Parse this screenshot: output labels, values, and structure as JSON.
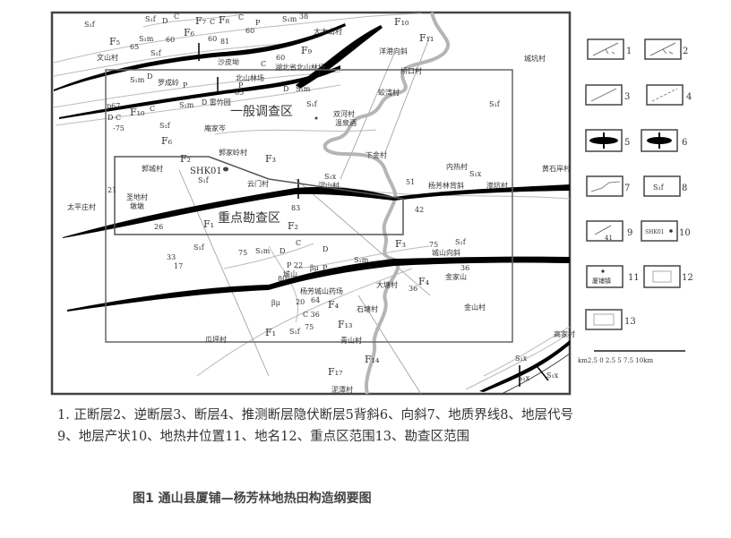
{
  "map": {
    "labels": {
      "s1f_a": "S₁f",
      "s1f_b": "S₁f",
      "d_a": "D",
      "c_a": "C",
      "f7": "F₇",
      "c_b": "C",
      "f8": "F₈",
      "c_c": "C",
      "p_a": "P",
      "n60_a": "60",
      "s1m_a": "S₁m",
      "n38": "38",
      "f5": "F₅",
      "n65_a": "65",
      "s1m_b": "S₁m",
      "n60_b": "60",
      "f6_a": "F₆",
      "n60_c": "60",
      "n81": "81",
      "damushan": "大木山村",
      "f10_a": "F₁₀",
      "f11": "F₁₁",
      "yanggang": "洋港向斜",
      "wenshan": "文山村",
      "s1f_c": "S₁f",
      "f9": "F₉",
      "shapiao": "沙皮坳",
      "c_d": "C",
      "n60_d": "60",
      "hubei_forest": "湖北省北山林场",
      "qiaokou": "桥口村",
      "chengkeng": "城坑村",
      "s1m_c": "S₁m",
      "d_b": "D",
      "luocheng": "罗成岭",
      "p_b": "P",
      "beishan_forest": "北山林场",
      "p_c": "P",
      "d_c": "D",
      "s1m_d": "S₁m",
      "jiaowan": "蛟湾村",
      "leizhu": "D 雷竹园",
      "n65_b": "65",
      "s1m_e": "S₁m",
      "p67": "p67",
      "f10_b": "F₁₀",
      "c_e": "C",
      "general_area": "一般调查区",
      "s1f_d": "S₁f",
      "s1f_e": "S₁f",
      "dc": "D C",
      "n75_a": "-75",
      "s1f_f": "S₁f",
      "f6_b": "F₆",
      "anjiacen": "庵家岑",
      "shuanghe": "双河村",
      "wenquan": "温泉酒",
      "guojialing": "郭家岭村",
      "f3_a": "F₃",
      "guocheng": "郭城村",
      "f2_a": "F₂",
      "shk01": "SHK01",
      "s1f_g": "S₁f",
      "xiajin": "下金村",
      "neire": "内热村",
      "s1x_a": "S₁x",
      "yangfanglin": "杨芳林背斜",
      "shenkeng": "渗坑村",
      "n51": "51",
      "huangshi": "黄石岸村",
      "sx_b": "S₁x",
      "chenshan": "沉山村",
      "yunmen": "云门村",
      "n21": "21",
      "shengdi": "圣地村",
      "dundun": "墩墩",
      "taiping": "太平庄村",
      "n83": "83",
      "n42": "42",
      "key_area": "重点勘查区",
      "f1_a": "F₁",
      "f2_b": "F₂",
      "n26": "26",
      "f3_b": "F₃",
      "n75_b": "75",
      "s1f_h": "S₁f",
      "chengshan_syn": "城山向斜",
      "s1f_i": "S₁f",
      "n33": "33",
      "n75_c": "75",
      "s1m_f": "S₁m",
      "d_d": "D",
      "c_f": "C",
      "d_e": "D",
      "s1m_g": "S₁m",
      "n17": "17",
      "jinjiashan": "金家山",
      "n36_a": "36",
      "n36_b": "36",
      "f4_a": "F₄",
      "datang": "大塘村",
      "chengshan": "城山",
      "p22": "P 22",
      "bmu_a": "βμ",
      "p_d": "P",
      "bmu_b": "βμ",
      "n80": "80",
      "yaochang": "杨芳城山药场",
      "n20": "20",
      "n64": "64",
      "f4_b": "F₄",
      "shitang": "石塘村",
      "f13": "F₁₃",
      "c36": "C 36",
      "n75_d": "75",
      "s1f_j": "S₁f",
      "f1_b": "F₁",
      "jinshan": "金山村",
      "guaping": "瓜坪村",
      "qingshan": "青山村",
      "f14": "F₁₄",
      "f17": "F₁₇",
      "nitan": "泥潭村",
      "gaojia": "高家村",
      "sx_c": "S₁x",
      "sx_d": "S₁x",
      "sx_e": "S₁x"
    },
    "scale_bar": "km2.5  0   2.5   5   7.5  10km"
  },
  "legend": {
    "items": [
      {
        "num": "1",
        "symbol": "normal-fault"
      },
      {
        "num": "2",
        "symbol": "reverse-fault"
      },
      {
        "num": "3",
        "symbol": "fault"
      },
      {
        "num": "4",
        "symbol": "inferred-fault"
      },
      {
        "num": "5",
        "symbol": "anticline"
      },
      {
        "num": "6",
        "symbol": "syncline"
      },
      {
        "num": "7",
        "symbol": "geologic-boundary"
      },
      {
        "num": "8",
        "symbol": "stratum-code",
        "text": "S₁f"
      },
      {
        "num": "9",
        "symbol": "attitude",
        "text": "41"
      },
      {
        "num": "10",
        "symbol": "geothermal-well",
        "text": "SHK01"
      },
      {
        "num": "11",
        "symbol": "place-name",
        "text": "厦铺镇"
      },
      {
        "num": "12",
        "symbol": "key-area-range"
      },
      {
        "num": "13",
        "symbol": "survey-area-range"
      }
    ]
  },
  "caption": {
    "line1": "1. 正断层2、逆断层3、断层4、推测断层隐伏断层5背斜6、向斜7、地质界线8、地层代号",
    "line2": "9、地层产状10、地热井位置11、地名12、重点区范围13、勘查区范围"
  },
  "figure_title": "图1 通山县厦铺—杨芳林地热田构造纲要图",
  "colors": {
    "line": "#000000",
    "river": "#b0b0b0",
    "frame": "#555555",
    "text": "#333333"
  }
}
